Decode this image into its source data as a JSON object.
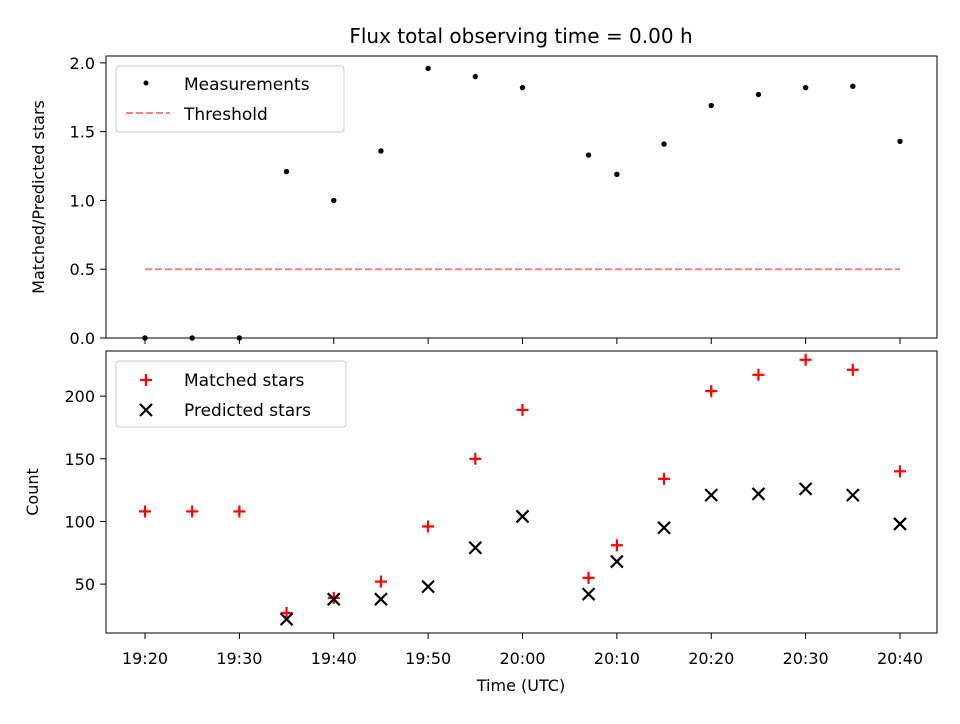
{
  "figure": {
    "title": "Flux total observing time = 0.00 h"
  },
  "chart_data": [
    {
      "type": "scatter",
      "panel": "top",
      "ylabel": "Matched/Predicted stars",
      "xlabel": "",
      "ylim": [
        0,
        2.05
      ],
      "yticks": [
        "0.0",
        "0.5",
        "1.0",
        "1.5",
        "2.0"
      ],
      "ytick_values": [
        0,
        0.5,
        1.0,
        1.5,
        2.0
      ],
      "legend_position": "top-left",
      "x": [
        "19:20",
        "19:25",
        "19:30",
        "19:35",
        "19:40",
        "19:45",
        "19:50",
        "19:55",
        "20:00",
        "20:07",
        "20:10",
        "20:15",
        "20:20",
        "20:25",
        "20:30",
        "20:35",
        "20:40"
      ],
      "series": [
        {
          "name": "Measurements",
          "marker": "dot",
          "color": "#000000",
          "values": [
            0,
            0,
            0,
            1.21,
            1.0,
            1.36,
            1.96,
            1.9,
            1.82,
            1.33,
            1.19,
            1.41,
            1.69,
            1.77,
            1.82,
            1.83,
            1.43
          ]
        },
        {
          "name": "Threshold",
          "marker": "dashed-line",
          "color": "#ff7f7f",
          "x": [
            "19:20",
            "20:40"
          ],
          "values": [
            0.5,
            0.5
          ]
        }
      ]
    },
    {
      "type": "scatter",
      "panel": "bottom",
      "ylabel": "Count",
      "xlabel": "Time (UTC)",
      "ylim": [
        11,
        236
      ],
      "yticks": [
        "50",
        "100",
        "150",
        "200"
      ],
      "ytick_values": [
        50,
        100,
        150,
        200
      ],
      "xticks": [
        "19:20",
        "19:30",
        "19:40",
        "19:50",
        "20:00",
        "20:10",
        "20:20",
        "20:30",
        "20:40"
      ],
      "legend_position": "top-left",
      "series": [
        {
          "name": "Matched stars",
          "marker": "plus",
          "color": "#ff0000",
          "x": [
            "19:20",
            "19:25",
            "19:30",
            "19:35",
            "19:40",
            "19:45",
            "19:50",
            "19:55",
            "20:00",
            "20:07",
            "20:10",
            "20:15",
            "20:20",
            "20:25",
            "20:30",
            "20:35",
            "20:40"
          ],
          "values": [
            108,
            108,
            108,
            27,
            39,
            52,
            96,
            150,
            189,
            55,
            81,
            134,
            204,
            217,
            229,
            221,
            140
          ]
        },
        {
          "name": "Predicted stars",
          "marker": "x",
          "color": "#000000",
          "x": [
            "19:35",
            "19:40",
            "19:45",
            "19:50",
            "19:55",
            "20:00",
            "20:07",
            "20:10",
            "20:15",
            "20:20",
            "20:25",
            "20:30",
            "20:35",
            "20:40"
          ],
          "values": [
            22,
            38,
            38,
            48,
            79,
            104,
            42,
            68,
            95,
            121,
            122,
            126,
            121,
            98
          ]
        }
      ]
    }
  ]
}
